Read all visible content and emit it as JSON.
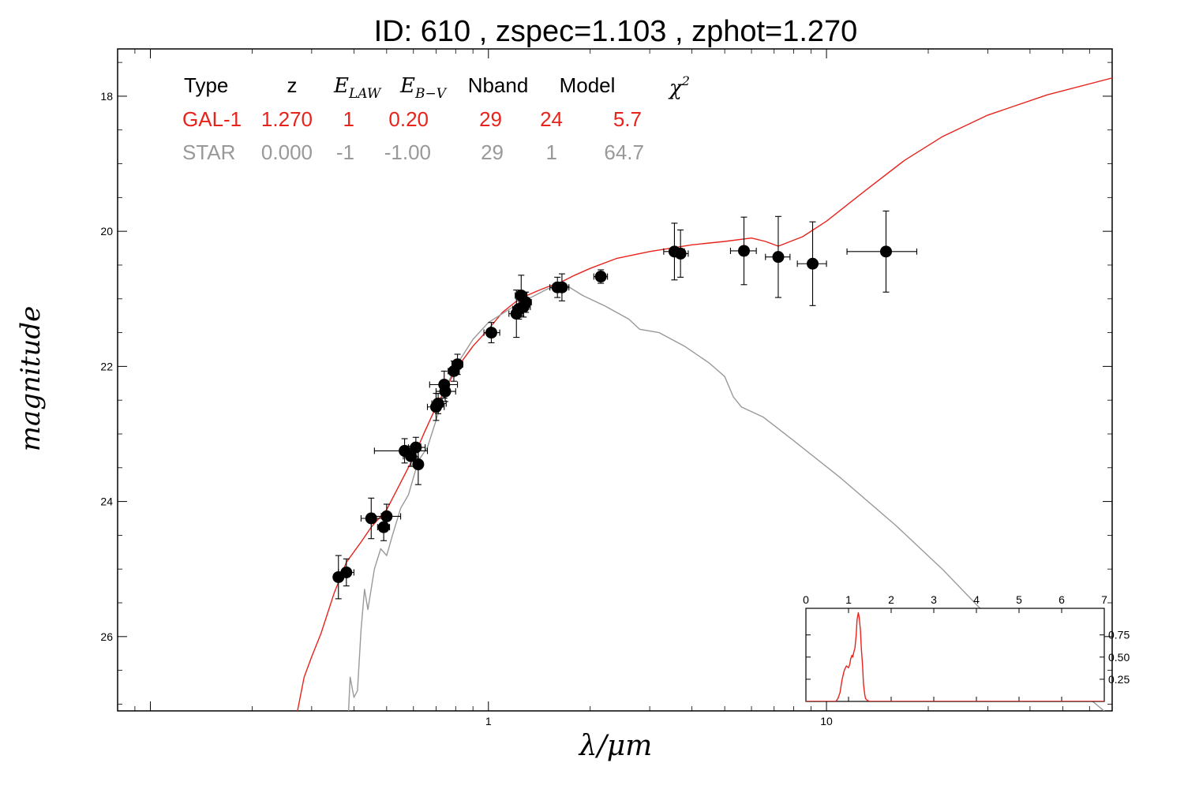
{
  "chart_data": [
    {
      "type": "scatter",
      "title": "ID:  610   , zspec=1.103 , zphot=1.270",
      "xlabel": "λ/μm",
      "ylabel": "magnitude",
      "xscale": "log",
      "yaxis_inverted": true,
      "xlim": [
        0.08,
        70
      ],
      "ylim": [
        27.1,
        17.3
      ],
      "xticks": [
        1,
        10
      ],
      "yticks": [
        18,
        20,
        22,
        24,
        26
      ],
      "grid": false,
      "legend_table": {
        "headers": [
          "Type",
          "z",
          "E_LAW",
          "E_B-V",
          "Nband",
          "Model",
          "χ²"
        ],
        "rows": [
          {
            "color": "#e8231c",
            "cells": [
              "GAL-1",
              "1.270",
              "1",
              "0.20",
              "29",
              "24",
              "5.7"
            ]
          },
          {
            "color": "#999999",
            "cells": [
              "STAR",
              "0.000",
              "-1",
              "-1.00",
              "29",
              "1",
              "64.7"
            ]
          }
        ]
      },
      "series": [
        {
          "kind": "points",
          "color": "#000000",
          "points": [
            {
              "x": 0.36,
              "y": 25.12,
              "xerr": [
                0.35,
                0.37
              ],
              "yerr": 0.32
            },
            {
              "x": 0.38,
              "y": 25.05,
              "xerr": [
                0.36,
                0.4
              ],
              "yerr": 0.2
            },
            {
              "x": 0.45,
              "y": 24.25,
              "xerr": [
                0.42,
                0.49
              ],
              "yerr": 0.3
            },
            {
              "x": 0.49,
              "y": 24.38,
              "xerr": [
                0.47,
                0.51
              ],
              "yerr": 0.2
            },
            {
              "x": 0.5,
              "y": 24.22,
              "xerr": [
                0.46,
                0.55
              ],
              "yerr": 0.18
            },
            {
              "x": 0.565,
              "y": 23.25,
              "xerr": [
                0.46,
                0.66
              ],
              "yerr": 0.18
            },
            {
              "x": 0.59,
              "y": 23.33,
              "xerr": [
                0.56,
                0.62
              ],
              "yerr": 0.15
            },
            {
              "x": 0.61,
              "y": 23.2,
              "xerr": [
                0.58,
                0.65
              ],
              "yerr": 0.15
            },
            {
              "x": 0.62,
              "y": 23.45,
              "xerr": [
                0.6,
                0.64
              ],
              "yerr": 0.3
            },
            {
              "x": 0.7,
              "y": 22.6,
              "xerr": [
                0.66,
                0.74
              ],
              "yerr": 0.2
            },
            {
              "x": 0.71,
              "y": 22.55,
              "xerr": [
                0.68,
                0.75
              ],
              "yerr": 0.15
            },
            {
              "x": 0.74,
              "y": 22.27,
              "xerr": [
                0.67,
                0.81
              ],
              "yerr": 0.2
            },
            {
              "x": 0.745,
              "y": 22.37,
              "xerr": [
                0.7,
                0.8
              ],
              "yerr": 0.15
            },
            {
              "x": 0.79,
              "y": 22.07,
              "xerr": [
                0.76,
                0.82
              ],
              "yerr": 0.15
            },
            {
              "x": 0.81,
              "y": 21.97,
              "xerr": [
                0.78,
                0.84
              ],
              "yerr": 0.15
            },
            {
              "x": 1.02,
              "y": 21.5,
              "xerr": [
                0.97,
                1.08
              ],
              "yerr": 0.15
            },
            {
              "x": 1.21,
              "y": 21.22,
              "xerr": [
                1.15,
                1.27
              ],
              "yerr": 0.35
            },
            {
              "x": 1.23,
              "y": 21.15,
              "xerr": [
                1.18,
                1.29
              ],
              "yerr": 0.15
            },
            {
              "x": 1.25,
              "y": 20.95,
              "xerr": [
                1.2,
                1.3
              ],
              "yerr": 0.3
            },
            {
              "x": 1.27,
              "y": 21.12,
              "xerr": [
                1.22,
                1.33
              ],
              "yerr": 0.15
            },
            {
              "x": 1.29,
              "y": 21.05,
              "xerr": [
                1.24,
                1.34
              ],
              "yerr": 0.15
            },
            {
              "x": 1.6,
              "y": 20.83,
              "xerr": [
                1.52,
                1.7
              ],
              "yerr": 0.15
            },
            {
              "x": 1.65,
              "y": 20.83,
              "xerr": [
                1.58,
                1.73
              ],
              "yerr": 0.2
            },
            {
              "x": 2.15,
              "y": 20.67,
              "xerr": [
                2.05,
                2.25
              ],
              "yerr": 0.1
            },
            {
              "x": 3.55,
              "y": 20.3,
              "xerr": [
                3.3,
                3.8
              ],
              "yerr": 0.42
            },
            {
              "x": 3.7,
              "y": 20.33,
              "xerr": [
                3.5,
                3.9
              ],
              "yerr": 0.35
            },
            {
              "x": 5.7,
              "y": 20.29,
              "xerr": [
                5.2,
                6.2
              ],
              "yerr": 0.5
            },
            {
              "x": 7.2,
              "y": 20.38,
              "xerr": [
                6.6,
                7.8
              ],
              "yerr": 0.6
            },
            {
              "x": 9.1,
              "y": 20.48,
              "xerr": [
                8.2,
                10.0
              ],
              "yerr": 0.62
            },
            {
              "x": 15.0,
              "y": 20.3,
              "xerr": [
                11.5,
                18.5
              ],
              "yerr": 0.6
            }
          ]
        },
        {
          "kind": "line",
          "color": "#e8231c",
          "x": [
            0.27,
            0.285,
            0.3,
            0.32,
            0.35,
            0.38,
            0.42,
            0.45,
            0.5,
            0.55,
            0.6,
            0.65,
            0.7,
            0.8,
            0.9,
            1.0,
            1.1,
            1.2,
            1.3,
            1.4,
            1.5,
            1.6,
            1.8,
            2.0,
            2.4,
            3.0,
            4.0,
            5.0,
            6.0,
            6.6,
            7.2,
            8.5,
            10.0,
            13.0,
            17.0,
            22.0,
            30.0,
            45.0,
            70.0
          ],
          "y": [
            27.2,
            26.6,
            26.3,
            25.95,
            25.35,
            24.9,
            24.6,
            24.38,
            24.12,
            23.72,
            23.35,
            22.95,
            22.6,
            22.05,
            21.7,
            21.45,
            21.2,
            21.05,
            20.95,
            20.88,
            20.82,
            20.78,
            20.65,
            20.55,
            20.4,
            20.3,
            20.2,
            20.15,
            20.1,
            20.15,
            20.22,
            20.08,
            19.85,
            19.4,
            18.95,
            18.6,
            18.28,
            17.98,
            17.73
          ]
        },
        {
          "kind": "line",
          "color": "#999999",
          "x": [
            0.385,
            0.39,
            0.4,
            0.41,
            0.42,
            0.43,
            0.44,
            0.46,
            0.48,
            0.5,
            0.52,
            0.55,
            0.58,
            0.62,
            0.66,
            0.7,
            0.75,
            0.8,
            0.9,
            1.0,
            1.2,
            1.5,
            1.7,
            1.9,
            2.2,
            2.6,
            2.8,
            3.2,
            3.8,
            4.5,
            5.0,
            5.3,
            5.6,
            6.5,
            8.0,
            11.0,
            16.0,
            22.0,
            30.0,
            45.0,
            70.0
          ],
          "y": [
            27.2,
            26.6,
            26.9,
            26.8,
            25.9,
            25.3,
            25.6,
            25.0,
            24.7,
            24.8,
            24.5,
            24.1,
            23.9,
            23.4,
            23.2,
            22.8,
            22.3,
            22.0,
            21.6,
            21.35,
            21.1,
            20.85,
            20.8,
            20.95,
            21.1,
            21.3,
            21.45,
            21.5,
            21.7,
            21.95,
            22.15,
            22.45,
            22.6,
            22.75,
            23.1,
            23.65,
            24.35,
            25.0,
            25.7,
            26.4,
            27.2
          ]
        }
      ]
    },
    {
      "type": "line",
      "title": "",
      "xlim": [
        0,
        7
      ],
      "ylim": [
        0,
        1.05
      ],
      "xticks": [
        0,
        1,
        2,
        3,
        4,
        5,
        6,
        7
      ],
      "yticks": [
        0.25,
        0.5,
        0.75
      ],
      "ytick_labels": [
        "0.25",
        "0.50",
        "0.75"
      ],
      "series": [
        {
          "color": "#e8231c",
          "x": [
            0,
            0.7,
            0.75,
            0.8,
            0.85,
            0.9,
            0.95,
            1.0,
            1.03,
            1.05,
            1.08,
            1.1,
            1.12,
            1.15,
            1.18,
            1.2,
            1.23,
            1.25,
            1.28,
            1.3,
            1.33,
            1.35,
            1.38,
            1.4,
            1.45,
            1.5,
            7.0
          ],
          "y": [
            0,
            0,
            0.03,
            0.1,
            0.25,
            0.35,
            0.4,
            0.38,
            0.42,
            0.48,
            0.52,
            0.5,
            0.55,
            0.6,
            0.75,
            0.92,
            1.0,
            0.95,
            0.8,
            0.6,
            0.4,
            0.2,
            0.08,
            0.03,
            0.01,
            0,
            0
          ]
        }
      ]
    }
  ]
}
